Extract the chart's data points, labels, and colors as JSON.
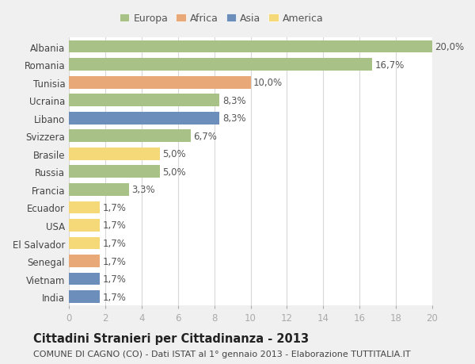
{
  "countries": [
    "Albania",
    "Romania",
    "Tunisia",
    "Ucraina",
    "Libano",
    "Svizzera",
    "Brasile",
    "Russia",
    "Francia",
    "Ecuador",
    "USA",
    "El Salvador",
    "Senegal",
    "Vietnam",
    "India"
  ],
  "values": [
    20.0,
    16.7,
    10.0,
    8.3,
    8.3,
    6.7,
    5.0,
    5.0,
    3.3,
    1.7,
    1.7,
    1.7,
    1.7,
    1.7,
    1.7
  ],
  "labels": [
    "20,0%",
    "16,7%",
    "10,0%",
    "8,3%",
    "8,3%",
    "6,7%",
    "5,0%",
    "5,0%",
    "3,3%",
    "1,7%",
    "1,7%",
    "1,7%",
    "1,7%",
    "1,7%",
    "1,7%"
  ],
  "colors": [
    "#a8c186",
    "#a8c186",
    "#e8a878",
    "#a8c186",
    "#6b8fba",
    "#a8c186",
    "#f5d878",
    "#a8c186",
    "#a8c186",
    "#f5d878",
    "#f5d878",
    "#f5d878",
    "#e8a878",
    "#6b8fba",
    "#6b8fba"
  ],
  "legend": {
    "Europa": "#a8c186",
    "Africa": "#e8a878",
    "Asia": "#6b8fba",
    "America": "#f5d878"
  },
  "title": "Cittadini Stranieri per Cittadinanza - 2013",
  "subtitle": "COMUNE DI CAGNO (CO) - Dati ISTAT al 1° gennaio 2013 - Elaborazione TUTTITALIA.IT",
  "xlim": [
    0,
    20
  ],
  "xticks": [
    0,
    2,
    4,
    6,
    8,
    10,
    12,
    14,
    16,
    18,
    20
  ],
  "background_color": "#f0f0f0",
  "plot_bg_color": "#ffffff",
  "grid_color": "#d8d8d8",
  "bar_height": 0.7,
  "label_fontsize": 8.5,
  "tick_fontsize": 8.5,
  "title_fontsize": 10.5,
  "subtitle_fontsize": 8.0
}
